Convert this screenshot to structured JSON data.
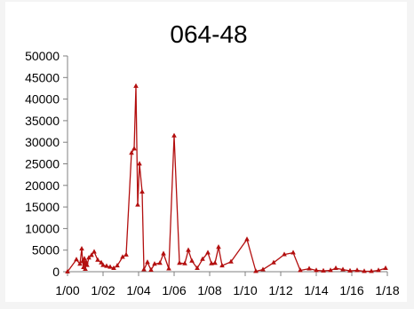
{
  "colors": {
    "series": "#b30f0f",
    "axis": "#808080",
    "background": "#ffffff"
  },
  "chart_data": {
    "type": "line",
    "title": "064-48",
    "xlabel": "",
    "ylabel": "",
    "x_tick_labels": [
      "1/00",
      "1/02",
      "1/04",
      "1/06",
      "1/08",
      "1/10",
      "1/12",
      "1/14",
      "1/16",
      "1/18"
    ],
    "x_tick_years": [
      2000,
      2002,
      2004,
      2006,
      2008,
      2010,
      2012,
      2014,
      2016,
      2018
    ],
    "xlim": [
      2000,
      2018
    ],
    "ylim": [
      0,
      50000
    ],
    "y_ticks": [
      0,
      5000,
      10000,
      15000,
      20000,
      25000,
      30000,
      35000,
      40000,
      45000,
      50000
    ],
    "grid": false,
    "legend": "none",
    "series": [
      {
        "marker": "triangle",
        "x": [
          2000.0,
          2000.5,
          2000.7,
          2000.8,
          2000.85,
          2000.9,
          2000.95,
          2001.0,
          2001.05,
          2001.1,
          2001.2,
          2001.35,
          2001.5,
          2001.7,
          2001.9,
          2002.0,
          2002.2,
          2002.4,
          2002.6,
          2002.8,
          2003.1,
          2003.3,
          2003.6,
          2003.75,
          2003.85,
          2003.95,
          2004.05,
          2004.2,
          2004.3,
          2004.5,
          2004.7,
          2004.9,
          2005.2,
          2005.4,
          2005.7,
          2006.0,
          2006.3,
          2006.6,
          2006.8,
          2007.0,
          2007.3,
          2007.6,
          2007.9,
          2008.1,
          2008.3,
          2008.5,
          2008.7,
          2009.2,
          2010.1,
          2010.6,
          2011.0,
          2011.6,
          2012.2,
          2012.7,
          2013.1,
          2013.6,
          2014.0,
          2014.4,
          2014.8,
          2015.1,
          2015.5,
          2015.9,
          2016.3,
          2016.7,
          2017.1,
          2017.5,
          2017.9
        ],
        "y": [
          0,
          2800,
          1800,
          5300,
          2400,
          1000,
          3000,
          600,
          2200,
          1500,
          3200,
          3800,
          4600,
          2700,
          2100,
          1500,
          1300,
          1100,
          800,
          1400,
          3400,
          3900,
          27500,
          28500,
          43000,
          15500,
          25000,
          18500,
          500,
          2200,
          400,
          1800,
          2000,
          4200,
          700,
          31500,
          2000,
          1900,
          5000,
          2500,
          800,
          2900,
          4400,
          1900,
          2000,
          5700,
          1400,
          2300,
          7500,
          100,
          500,
          2100,
          4000,
          4400,
          300,
          700,
          300,
          200,
          300,
          800,
          500,
          200,
          300,
          100,
          100,
          300,
          800
        ]
      }
    ]
  }
}
